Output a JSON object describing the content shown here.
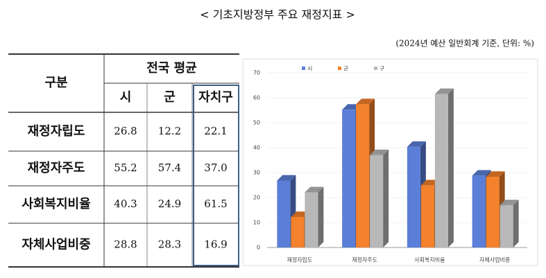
{
  "title": "< 기초지방정부 주요 재정지표 >",
  "note": "(2024년 예산 일반회계 기준, 단위: %)",
  "table": {
    "corner": "구분",
    "group": "전국 평균",
    "columns": [
      "시",
      "군",
      "자치구"
    ],
    "rows": [
      [
        "재정자립도",
        "26.8",
        "12.2",
        "22.1"
      ],
      [
        "재정자주도",
        "55.2",
        "57.4",
        "37.0"
      ],
      [
        "사회복지비율",
        "40.3",
        "24.9",
        "61.5"
      ],
      [
        "자체사업비중",
        "28.8",
        "28.3",
        "16.9"
      ]
    ]
  },
  "chart_data": {
    "type": "bar",
    "categories": [
      "재정자립도",
      "재정자주도",
      "사회복지비율",
      "자체사업비중"
    ],
    "series": [
      {
        "name": "시",
        "color": "#5b7fd8",
        "values": [
          26.8,
          55.2,
          40.3,
          28.8
        ]
      },
      {
        "name": "군",
        "color": "#f4812b",
        "values": [
          12.2,
          57.4,
          24.9,
          28.3
        ]
      },
      {
        "name": "구",
        "color": "#b8b8b8",
        "values": [
          22.1,
          37.0,
          61.5,
          16.9
        ]
      }
    ],
    "ylim": [
      0,
      70
    ],
    "yticks": [
      0,
      10,
      20,
      30,
      40,
      50,
      60,
      70
    ]
  }
}
